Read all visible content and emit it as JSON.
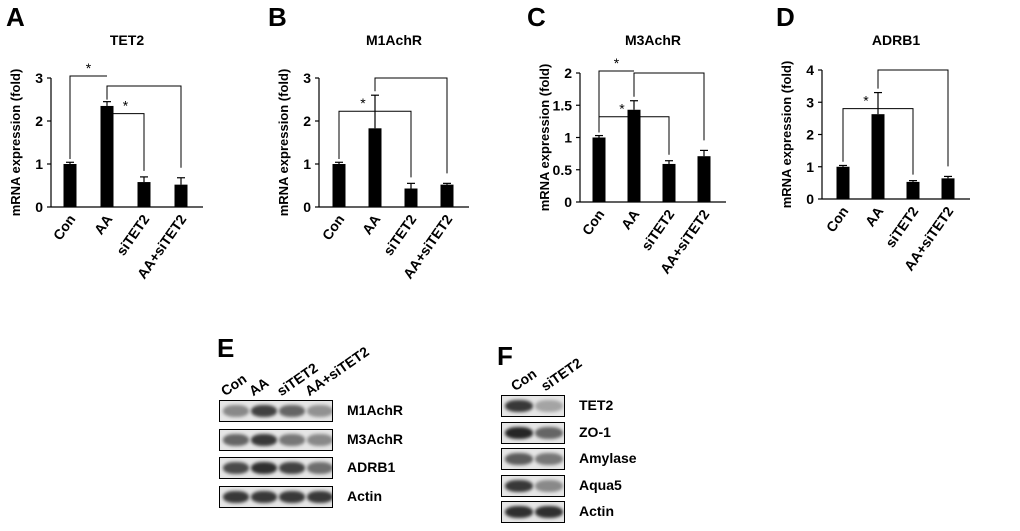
{
  "panels": {
    "A": "A",
    "B": "B",
    "C": "C",
    "D": "D",
    "E": "E",
    "F": "F"
  },
  "chart_data": [
    {
      "type": "bar",
      "title": "TET2",
      "ylabel": "mRNA expression (fold)",
      "categories": [
        "Con",
        "AA",
        "siTET2",
        "AA+siTET2"
      ],
      "values": [
        1.0,
        2.35,
        0.58,
        0.52
      ],
      "errors": [
        0.04,
        0.1,
        0.12,
        0.16
      ],
      "ylim": [
        0,
        3
      ],
      "yticks": [
        "0",
        "1",
        "2",
        "3"
      ],
      "annotations": [
        {
          "type": "bracket",
          "from": 0,
          "to": 1,
          "label": "*"
        },
        {
          "type": "bracket",
          "from": 1,
          "to": 2,
          "label": "*"
        },
        {
          "type": "bracket",
          "from": 1,
          "to": 3,
          "label": ""
        }
      ]
    },
    {
      "type": "bar",
      "title": "M1AchR",
      "ylabel": "mRNA expression (fold)",
      "categories": [
        "Con",
        "AA",
        "siTET2",
        "AA+siTET2"
      ],
      "values": [
        1.0,
        1.83,
        0.43,
        0.52
      ],
      "errors": [
        0.04,
        0.77,
        0.12,
        0.03
      ],
      "ylim": [
        0,
        3
      ],
      "yticks": [
        "0",
        "1",
        "2",
        "3"
      ],
      "annotations": [
        {
          "type": "bracket",
          "from": 0,
          "to": 2,
          "label": "*"
        },
        {
          "type": "bracket",
          "from": 1,
          "to": 3,
          "label": ""
        }
      ]
    },
    {
      "type": "bar",
      "title": "M3AchR",
      "ylabel": "mRNA expression (fold)",
      "categories": [
        "Con",
        "AA",
        "siTET2",
        "AA+siTET2"
      ],
      "values": [
        1.0,
        1.43,
        0.59,
        0.71
      ],
      "errors": [
        0.03,
        0.14,
        0.05,
        0.09
      ],
      "ylim": [
        0,
        2
      ],
      "yticks": [
        "0",
        "0.5",
        "1",
        "1.5",
        "2"
      ],
      "annotations": [
        {
          "type": "bracket",
          "from": 0,
          "to": 1,
          "label": "*"
        },
        {
          "type": "bracket",
          "from": 0,
          "to": 2,
          "label": "*"
        },
        {
          "type": "bracket",
          "from": 1,
          "to": 3,
          "label": ""
        }
      ]
    },
    {
      "type": "bar",
      "title": "ADRB1",
      "ylabel": "mRNA expression (fold)",
      "categories": [
        "Con",
        "AA",
        "siTET2",
        "AA+siTET2"
      ],
      "values": [
        1.0,
        2.63,
        0.53,
        0.64
      ],
      "errors": [
        0.04,
        0.67,
        0.04,
        0.06
      ],
      "ylim": [
        0,
        4
      ],
      "yticks": [
        "0",
        "1",
        "2",
        "3",
        "4"
      ],
      "annotations": [
        {
          "type": "bracket",
          "from": 0,
          "to": 2,
          "label": "*"
        },
        {
          "type": "bracket",
          "from": 1,
          "to": 3,
          "label": ""
        }
      ]
    }
  ],
  "blot_e": {
    "lanes": [
      "Con",
      "AA",
      "siTET2",
      "AA+siTET2"
    ],
    "rows": [
      {
        "label": "M1AchR",
        "intensity": [
          0.35,
          0.75,
          0.55,
          0.3
        ]
      },
      {
        "label": "M3AchR",
        "intensity": [
          0.55,
          0.8,
          0.45,
          0.35
        ]
      },
      {
        "label": "ADRB1",
        "intensity": [
          0.7,
          0.85,
          0.75,
          0.5
        ]
      },
      {
        "label": "Actin",
        "intensity": [
          0.8,
          0.8,
          0.8,
          0.8
        ]
      }
    ]
  },
  "blot_f": {
    "lanes": [
      "Con",
      "siTET2"
    ],
    "rows": [
      {
        "label": "TET2",
        "intensity": [
          0.8,
          0.2
        ]
      },
      {
        "label": "ZO-1",
        "intensity": [
          0.9,
          0.55
        ]
      },
      {
        "label": "Amylase",
        "intensity": [
          0.6,
          0.45
        ]
      },
      {
        "label": "Aqua5",
        "intensity": [
          0.8,
          0.35
        ]
      },
      {
        "label": "Actin",
        "intensity": [
          0.85,
          0.85
        ]
      }
    ]
  }
}
